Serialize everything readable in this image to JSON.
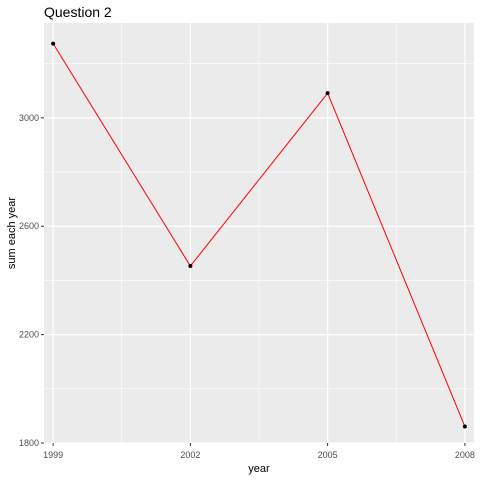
{
  "chart_data": {
    "type": "line",
    "title": "Question 2",
    "xlabel": "year",
    "ylabel": "sum each year",
    "x": [
      1999,
      2002,
      2005,
      2008
    ],
    "series": [
      {
        "values": [
          3274,
          2453,
          3091,
          1861
        ],
        "color": "#ff0000",
        "point_color": "#000000"
      }
    ],
    "x_ticks": [
      "1999",
      "2002",
      "2005",
      "2008"
    ],
    "y_ticks": [
      "1800",
      "2200",
      "2600",
      "3000"
    ],
    "xlim": [
      1998.8,
      2008.2
    ],
    "ylim": [
      1800,
      3350
    ],
    "grid": true,
    "panel_background": "#ebebeb",
    "grid_color": "#ffffff"
  }
}
